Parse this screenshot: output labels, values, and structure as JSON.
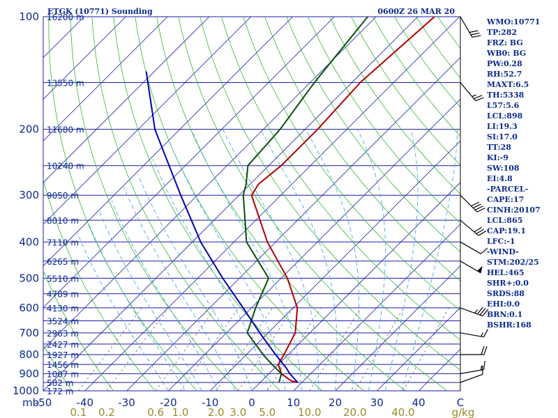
{
  "header": {
    "station": "ETGK (10771) Sounding",
    "time": "0600Z 26 MAR 20"
  },
  "parameters": [
    "WMO:10771",
    "TP:282",
    "FRZ: BG",
    "WB0: BG",
    "PW:0.28",
    "RH:52.7",
    "MAXT:6.5",
    "TH:5338",
    "L57:5.6",
    "LCL:898",
    "LI:19.3",
    "SI:17.0",
    "TT:28",
    "KI:-9",
    "SW:108",
    "EI:4.8",
    "-PARCEL-",
    "CAPE:17",
    "CINH:20107",
    "LCL:865",
    "CAP:19.1",
    "LFC:-1",
    "-WIND-",
    "STM:202/25",
    "HEL:465",
    "SHR+:0.0",
    "SRDS:88",
    "EHI:0.0",
    "BRN:0.1",
    "BSHR:168"
  ],
  "colors": {
    "isobar": "#1a1aa8",
    "isotherm": "#1a1aa8",
    "dry_adiabat": "#2db82d",
    "moist_adiabat": "#4aa6e6",
    "mixing_ratio": "#555555",
    "temperature": "#b00000",
    "dewpoint": "#0b4f0b",
    "parcel": "#0000b0",
    "wind_barb": "#000000"
  },
  "chart_data": {
    "type": "line",
    "title": "ETGK (10771) Sounding",
    "pressure_unit_label": "mb",
    "mixing_ratio_unit_label": "g/kg",
    "y_axis": {
      "scale": "log",
      "range_hpa": [
        1000,
        100
      ],
      "tick_labels": [
        "100",
        "200",
        "300",
        "400",
        "500",
        "600",
        "700",
        "800",
        "900",
        "1000"
      ]
    },
    "x_axis": {
      "range_c": [
        -50,
        50
      ],
      "tick_labels": [
        "-50",
        "-40",
        "-30",
        "-20",
        "-10",
        "0",
        "10",
        "20",
        "30",
        "40",
        "C"
      ]
    },
    "mixing_ratio_labels": [
      "0.1",
      "0.2",
      "0.6",
      "1.0",
      "2.0",
      "3.0",
      "5.0",
      "10.0",
      "20.0",
      "40.0"
    ],
    "mixing_ratio_values": [
      0.1,
      0.2,
      0.6,
      1.0,
      2.0,
      3.0,
      5.0,
      10.0,
      20.0,
      40.0
    ],
    "height_labels": [
      {
        "p": 100,
        "text": "16200 m"
      },
      {
        "p": 150,
        "text": "13550 m"
      },
      {
        "p": 200,
        "text": "11680 m"
      },
      {
        "p": 250,
        "text": "10240 m"
      },
      {
        "p": 300,
        "text": "9050 m"
      },
      {
        "p": 350,
        "text": "8010 m"
      },
      {
        "p": 400,
        "text": "7110 m"
      },
      {
        "p": 450,
        "text": "6265 m"
      },
      {
        "p": 500,
        "text": "5510 m"
      },
      {
        "p": 550,
        "text": "4789 m"
      },
      {
        "p": 600,
        "text": "4130 m"
      },
      {
        "p": 650,
        "text": "3524 m"
      },
      {
        "p": 700,
        "text": "2963 m"
      },
      {
        "p": 750,
        "text": "2427 m"
      },
      {
        "p": 800,
        "text": "1927 m"
      },
      {
        "p": 850,
        "text": "1456 m"
      },
      {
        "p": 900,
        "text": "1007 m"
      },
      {
        "p": 950,
        "text": "582 m"
      },
      {
        "p": 1000,
        "text": "172 m"
      }
    ],
    "series": [
      {
        "name": "Temperature",
        "p": [
          950,
          940,
          920,
          900,
          850,
          800,
          700,
          600,
          500,
          400,
          300,
          280,
          250,
          200,
          150,
          100
        ],
        "t": [
          9,
          7,
          5,
          3,
          0,
          -1,
          -3.5,
          -9,
          -18.5,
          -32,
          -47,
          -48,
          -47,
          -47,
          -48,
          -46
        ]
      },
      {
        "name": "Dewpoint",
        "p": [
          950,
          900,
          850,
          800,
          700,
          600,
          500,
          400,
          300,
          280,
          250,
          200,
          150,
          100
        ],
        "t": [
          4.5,
          3,
          -1.5,
          -6,
          -15,
          -19,
          -23,
          -37,
          -49,
          -51,
          -55,
          -56,
          -59,
          -62
        ]
      },
      {
        "name": "Parcel",
        "p": [
          950,
          900,
          865,
          800,
          700,
          600,
          500,
          400,
          300,
          200,
          140
        ],
        "t": [
          9,
          5,
          2.5,
          -3,
          -12,
          -22,
          -34,
          -48,
          -64,
          -86,
          -102
        ]
      }
    ],
    "wind_barbs": [
      {
        "p": 950,
        "dir_deg": 250,
        "speed_kt": 10
      },
      {
        "p": 900,
        "dir_deg": 260,
        "speed_kt": 15
      },
      {
        "p": 800,
        "dir_deg": 270,
        "speed_kt": 20
      },
      {
        "p": 700,
        "dir_deg": 280,
        "speed_kt": 15
      },
      {
        "p": 600,
        "dir_deg": 290,
        "speed_kt": 35
      },
      {
        "p": 450,
        "dir_deg": 300,
        "speed_kt": 50
      },
      {
        "p": 400,
        "dir_deg": 300,
        "speed_kt": 10
      },
      {
        "p": 350,
        "dir_deg": 310,
        "speed_kt": 30
      },
      {
        "p": 300,
        "dir_deg": 315,
        "speed_kt": 40
      },
      {
        "p": 150,
        "dir_deg": 320,
        "speed_kt": 25
      },
      {
        "p": 100,
        "dir_deg": 330,
        "speed_kt": 30
      }
    ],
    "grid": true
  }
}
